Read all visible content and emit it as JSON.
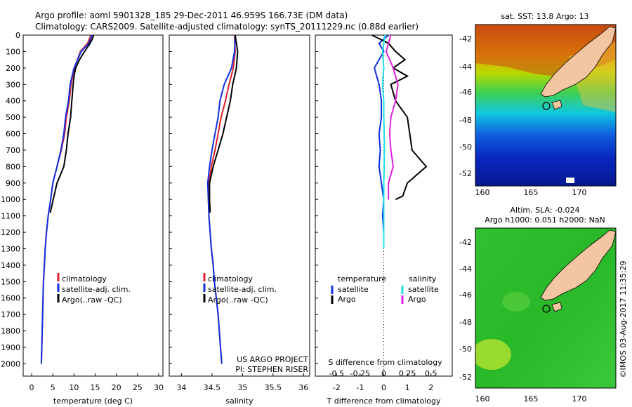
{
  "header": {
    "line1": "Argo profile: aoml 5901328_185 29-Dec-2011 46.959S 166.73E (DM data)",
    "line2": "Climatology: CARS2009. Satellite-adjusted climatology: synTS_20111229.nc (0.88d earlier)"
  },
  "colors": {
    "climatology": "#e0202a",
    "satellite": "#1030e0",
    "argo": "#000000",
    "satellite_cyan": "#20e0e8",
    "argo_magenta": "#e020e0",
    "land": "#f3c5a0"
  },
  "chart_data": [
    {
      "type": "line",
      "xlabel": "temperature (deg C)",
      "ylabel": "",
      "xlim": [
        -2,
        31
      ],
      "ylim": [
        2075,
        0
      ],
      "xticks": [
        "0",
        "5",
        "10",
        "15",
        "20",
        "25",
        "30"
      ],
      "yticks": [
        "0",
        "100",
        "200",
        "300",
        "400",
        "500",
        "600",
        "700",
        "800",
        "900",
        "1000",
        "1100",
        "1200",
        "1300",
        "1400",
        "1500",
        "1600",
        "1700",
        "1800",
        "1900",
        "2000"
      ],
      "legend": [
        "climatology",
        "satellite-adj. clim.",
        "Argo(..raw -QC)"
      ],
      "series": [
        {
          "name": "climatology",
          "color": "#e0202a",
          "points": [
            [
              14.0,
              0
            ],
            [
              13.2,
              50
            ],
            [
              11.5,
              100
            ],
            [
              10.1,
              200
            ],
            [
              9.3,
              300
            ],
            [
              8.9,
              400
            ],
            [
              8.2,
              500
            ],
            [
              7.8,
              600
            ],
            [
              7.0,
              700
            ],
            [
              6.0,
              800
            ],
            [
              5.0,
              900
            ],
            [
              4.5,
              1000
            ],
            [
              3.9,
              1100
            ],
            [
              3.5,
              1200
            ],
            [
              3.2,
              1300
            ],
            [
              3.0,
              1400
            ],
            [
              2.8,
              1500
            ],
            [
              2.7,
              1600
            ],
            [
              2.6,
              1700
            ],
            [
              2.5,
              1800
            ],
            [
              2.4,
              1900
            ],
            [
              2.3,
              2000
            ]
          ]
        },
        {
          "name": "satellite-adj. clim.",
          "color": "#1030e0",
          "points": [
            [
              14.3,
              0
            ],
            [
              13.5,
              50
            ],
            [
              11.7,
              100
            ],
            [
              10.0,
              200
            ],
            [
              9.1,
              300
            ],
            [
              8.7,
              400
            ],
            [
              8.0,
              500
            ],
            [
              7.6,
              600
            ],
            [
              6.9,
              700
            ],
            [
              6.0,
              800
            ],
            [
              5.0,
              900
            ],
            [
              4.5,
              1000
            ],
            [
              3.9,
              1100
            ],
            [
              3.5,
              1200
            ],
            [
              3.2,
              1300
            ],
            [
              3.0,
              1400
            ],
            [
              2.8,
              1500
            ],
            [
              2.7,
              1600
            ],
            [
              2.6,
              1700
            ],
            [
              2.5,
              1800
            ],
            [
              2.4,
              1900
            ],
            [
              2.3,
              2000
            ]
          ]
        },
        {
          "name": "Argo(..raw -QC)",
          "color": "#000000",
          "points": [
            [
              14.6,
              0
            ],
            [
              14.4,
              20
            ],
            [
              13.8,
              50
            ],
            [
              12.5,
              100
            ],
            [
              11.3,
              150
            ],
            [
              10.4,
              200
            ],
            [
              10.0,
              250
            ],
            [
              9.8,
              300
            ],
            [
              9.5,
              400
            ],
            [
              9.2,
              500
            ],
            [
              8.9,
              550
            ],
            [
              8.6,
              600
            ],
            [
              8.2,
              700
            ],
            [
              7.6,
              800
            ],
            [
              6.0,
              900
            ],
            [
              5.1,
              1000
            ],
            [
              4.4,
              1080
            ]
          ]
        }
      ]
    },
    {
      "type": "line",
      "xlabel": "salinity",
      "ylabel": "",
      "xlim": [
        33.8,
        36.1
      ],
      "ylim": [
        2075,
        0
      ],
      "xticks": [
        "34",
        "34.5",
        "35",
        "35.5",
        "36"
      ],
      "legend": [
        "climatology",
        "satellite-adj. clim.",
        "Argo(..raw -QC)"
      ],
      "annotations": [
        "US ARGO PROJECT",
        "PI: STEPHEN RISER"
      ],
      "series": [
        {
          "name": "climatology",
          "color": "#e0202a",
          "points": [
            [
              34.87,
              0
            ],
            [
              34.88,
              100
            ],
            [
              34.85,
              200
            ],
            [
              34.78,
              300
            ],
            [
              34.72,
              400
            ],
            [
              34.65,
              500
            ],
            [
              34.6,
              600
            ],
            [
              34.55,
              700
            ],
            [
              34.49,
              800
            ],
            [
              34.45,
              900
            ],
            [
              34.44,
              1000
            ],
            [
              34.45,
              1100
            ],
            [
              34.47,
              1200
            ],
            [
              34.49,
              1300
            ],
            [
              34.52,
              1400
            ],
            [
              34.54,
              1500
            ],
            [
              34.57,
              1600
            ],
            [
              34.6,
              1700
            ],
            [
              34.62,
              1800
            ],
            [
              34.64,
              1900
            ],
            [
              34.66,
              2000
            ]
          ]
        },
        {
          "name": "satellite-adj. clim.",
          "color": "#1030e0",
          "points": [
            [
              34.88,
              0
            ],
            [
              34.87,
              100
            ],
            [
              34.82,
              200
            ],
            [
              34.7,
              300
            ],
            [
              34.63,
              400
            ],
            [
              34.6,
              500
            ],
            [
              34.55,
              600
            ],
            [
              34.5,
              700
            ],
            [
              34.46,
              800
            ],
            [
              34.43,
              900
            ],
            [
              34.44,
              1000
            ],
            [
              34.45,
              1100
            ],
            [
              34.47,
              1200
            ],
            [
              34.49,
              1300
            ],
            [
              34.52,
              1400
            ],
            [
              34.54,
              1500
            ],
            [
              34.57,
              1600
            ],
            [
              34.6,
              1700
            ],
            [
              34.62,
              1800
            ],
            [
              34.64,
              1900
            ],
            [
              34.66,
              2000
            ]
          ]
        },
        {
          "name": "Argo(..raw -QC)",
          "color": "#000000",
          "points": [
            [
              34.88,
              0
            ],
            [
              34.92,
              100
            ],
            [
              34.9,
              200
            ],
            [
              34.84,
              300
            ],
            [
              34.8,
              400
            ],
            [
              34.74,
              500
            ],
            [
              34.68,
              600
            ],
            [
              34.6,
              700
            ],
            [
              34.52,
              800
            ],
            [
              34.46,
              900
            ],
            [
              34.46,
              1000
            ],
            [
              34.47,
              1080
            ]
          ]
        }
      ]
    },
    {
      "type": "line",
      "xlabel": "T difference from climatology",
      "xlabel2": "S difference from climatology",
      "ylabel": "",
      "xlim": [
        -2.9,
        2.9
      ],
      "ylim": [
        2075,
        0
      ],
      "xticks": [
        "-2",
        "-1",
        "0",
        "1",
        "2"
      ],
      "xticks2": [
        "-0.5",
        "-0.25",
        "0",
        "0.25",
        "0.5"
      ],
      "legend_titles": [
        "temperature",
        "salinity"
      ],
      "legend": [
        "satellite",
        "Argo",
        "satellite",
        "Argo"
      ],
      "series": [
        {
          "name": "satellite",
          "color": "#1030e0",
          "points": [
            [
              0.2,
              0
            ],
            [
              -0.2,
              50
            ],
            [
              0.0,
              100
            ],
            [
              -0.4,
              200
            ],
            [
              -0.2,
              300
            ],
            [
              -0.1,
              400
            ],
            [
              -0.1,
              500
            ],
            [
              -0.2,
              600
            ],
            [
              -0.15,
              700
            ],
            [
              -0.2,
              800
            ],
            [
              -0.1,
              900
            ],
            [
              0.0,
              1000
            ],
            [
              -0.05,
              1100
            ],
            [
              0.0,
              1200
            ],
            [
              0.0,
              1300
            ]
          ]
        },
        {
          "name": "Argo",
          "color": "#000000",
          "points": [
            [
              -0.5,
              0
            ],
            [
              0.2,
              50
            ],
            [
              0.5,
              100
            ],
            [
              0.9,
              150
            ],
            [
              0.4,
              200
            ],
            [
              1.0,
              250
            ],
            [
              0.3,
              300
            ],
            [
              0.5,
              400
            ],
            [
              1.0,
              500
            ],
            [
              1.1,
              600
            ],
            [
              1.2,
              700
            ],
            [
              1.8,
              800
            ],
            [
              1.0,
              900
            ],
            [
              0.8,
              980
            ],
            [
              0.5,
              1000
            ]
          ]
        },
        {
          "name": "satellite",
          "color": "#20e0e8",
          "points": [
            [
              0.05,
              0
            ],
            [
              0.0,
              50
            ],
            [
              -0.05,
              100
            ],
            [
              0.0,
              200
            ],
            [
              -0.05,
              300
            ],
            [
              0.0,
              400
            ],
            [
              0.0,
              500
            ],
            [
              0.02,
              600
            ],
            [
              0.03,
              700
            ],
            [
              0.02,
              800
            ],
            [
              0.0,
              900
            ],
            [
              0.0,
              1000
            ],
            [
              0.0,
              1100
            ],
            [
              0.0,
              1200
            ],
            [
              0.0,
              1300
            ]
          ]
        },
        {
          "name": "Argo",
          "color": "#e020e0",
          "points": [
            [
              0.3,
              0
            ],
            [
              0.1,
              100
            ],
            [
              0.4,
              200
            ],
            [
              0.6,
              300
            ],
            [
              0.5,
              400
            ],
            [
              0.3,
              500
            ],
            [
              0.25,
              600
            ],
            [
              0.3,
              700
            ],
            [
              0.4,
              800
            ],
            [
              0.2,
              900
            ],
            [
              0.2,
              1000
            ]
          ]
        }
      ]
    },
    {
      "type": "heatmap",
      "title": "sat. SST: 13.8 Argo: 13",
      "xlim": [
        159.5,
        174
      ],
      "ylim": [
        -53,
        -41.5
      ],
      "xticks": [
        "160",
        "165",
        "170"
      ],
      "yticks": [
        "-42",
        "-44",
        "-46",
        "-48",
        "-50",
        "-52"
      ],
      "argo_position": [
        166.73,
        -46.959
      ]
    },
    {
      "type": "heatmap",
      "title": "Altim. SLA: -0.024",
      "subtitle": "Argo h1000: 0.051 h2000: NaN",
      "xlim": [
        159.5,
        174
      ],
      "ylim": [
        -53,
        -41.5
      ],
      "xticks": [
        "160",
        "165",
        "170"
      ],
      "yticks": [
        "-42",
        "-44",
        "-46",
        "-48",
        "-50",
        "-52"
      ],
      "argo_position": [
        166.73,
        -46.959
      ]
    }
  ],
  "footer": {
    "credit": "©IMOS 03-Aug-2017 11:35:29"
  }
}
